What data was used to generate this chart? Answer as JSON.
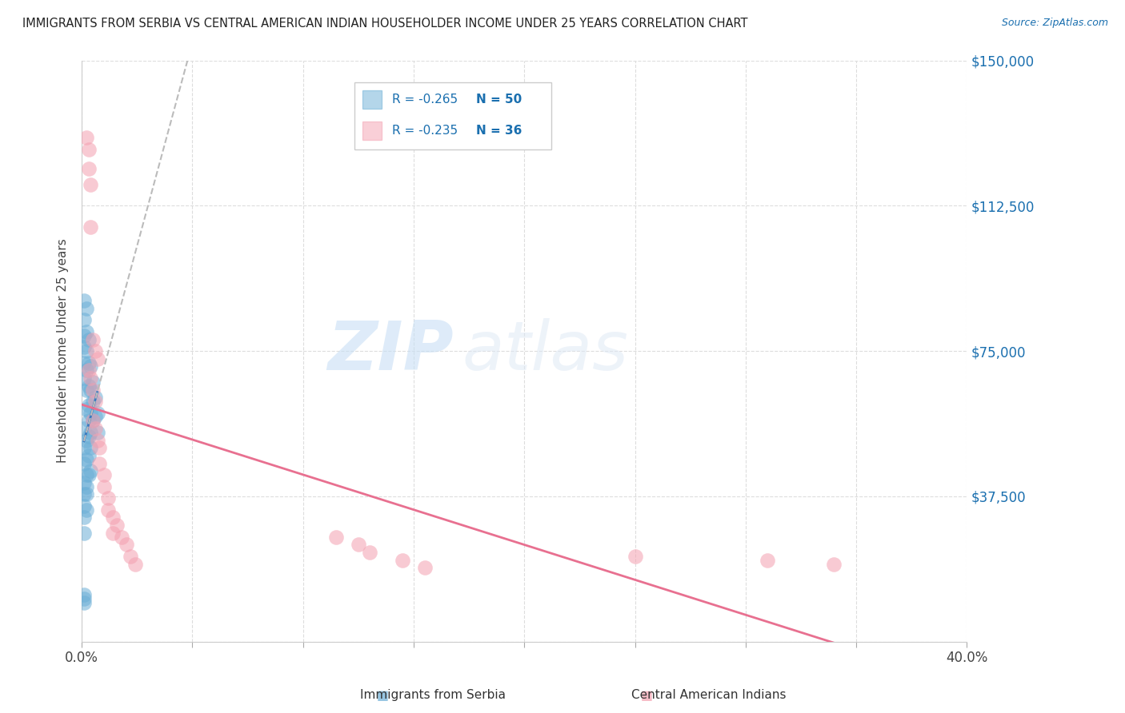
{
  "title": "IMMIGRANTS FROM SERBIA VS CENTRAL AMERICAN INDIAN HOUSEHOLDER INCOME UNDER 25 YEARS CORRELATION CHART",
  "source": "Source: ZipAtlas.com",
  "ylabel": "Householder Income Under 25 years",
  "xlim": [
    0.0,
    0.4
  ],
  "ylim": [
    0,
    150000
  ],
  "yticks": [
    0,
    37500,
    75000,
    112500,
    150000
  ],
  "ytick_labels": [
    "",
    "$37,500",
    "$75,000",
    "$112,500",
    "$150,000"
  ],
  "xtick_labels": [
    "0.0%",
    "",
    "",
    "",
    "",
    "",
    "",
    "",
    "40.0%"
  ],
  "legend_r1": "-0.265",
  "legend_n1": "50",
  "legend_r2": "-0.235",
  "legend_n2": "36",
  "color_serbia": "#6baed6",
  "color_central": "#f4a0b0",
  "color_trendline_serbia": "#3a7abf",
  "color_trendline_central": "#e87090",
  "color_trendline_dashed": "#bbbbbb",
  "watermark_zip": "ZIP",
  "watermark_atlas": "atlas",
  "serbia_x": [
    0.001,
    0.001,
    0.001,
    0.001,
    0.001,
    0.001,
    0.002,
    0.002,
    0.002,
    0.002,
    0.002,
    0.002,
    0.003,
    0.003,
    0.003,
    0.003,
    0.003,
    0.003,
    0.004,
    0.004,
    0.004,
    0.004,
    0.004,
    0.005,
    0.005,
    0.005,
    0.006,
    0.006,
    0.007,
    0.007,
    0.001,
    0.001,
    0.001,
    0.002,
    0.002,
    0.003,
    0.003,
    0.004,
    0.001,
    0.001,
    0.002,
    0.002,
    0.001,
    0.002,
    0.002,
    0.001,
    0.001,
    0.001,
    0.001,
    0.001
  ],
  "serbia_y": [
    88000,
    83000,
    79000,
    76000,
    72000,
    68000,
    86000,
    80000,
    75000,
    70000,
    65000,
    60000,
    78000,
    72000,
    66000,
    61000,
    57000,
    53000,
    71000,
    65000,
    59000,
    54000,
    50000,
    67000,
    62000,
    57000,
    63000,
    58000,
    59000,
    54000,
    55000,
    50000,
    46000,
    52000,
    47000,
    48000,
    43000,
    44000,
    41000,
    38000,
    43000,
    40000,
    35000,
    38000,
    34000,
    32000,
    28000,
    12000,
    10000,
    11000
  ],
  "central_x": [
    0.002,
    0.003,
    0.003,
    0.004,
    0.004,
    0.005,
    0.006,
    0.007,
    0.003,
    0.004,
    0.005,
    0.006,
    0.005,
    0.006,
    0.007,
    0.008,
    0.008,
    0.01,
    0.01,
    0.012,
    0.012,
    0.014,
    0.014,
    0.016,
    0.018,
    0.02,
    0.022,
    0.024,
    0.115,
    0.125,
    0.13,
    0.145,
    0.155,
    0.25,
    0.31,
    0.34
  ],
  "central_y": [
    130000,
    127000,
    122000,
    118000,
    107000,
    78000,
    75000,
    73000,
    70000,
    68000,
    65000,
    62000,
    57000,
    55000,
    52000,
    50000,
    46000,
    43000,
    40000,
    37000,
    34000,
    32000,
    28000,
    30000,
    27000,
    25000,
    22000,
    20000,
    27000,
    25000,
    23000,
    21000,
    19000,
    22000,
    21000,
    20000
  ]
}
